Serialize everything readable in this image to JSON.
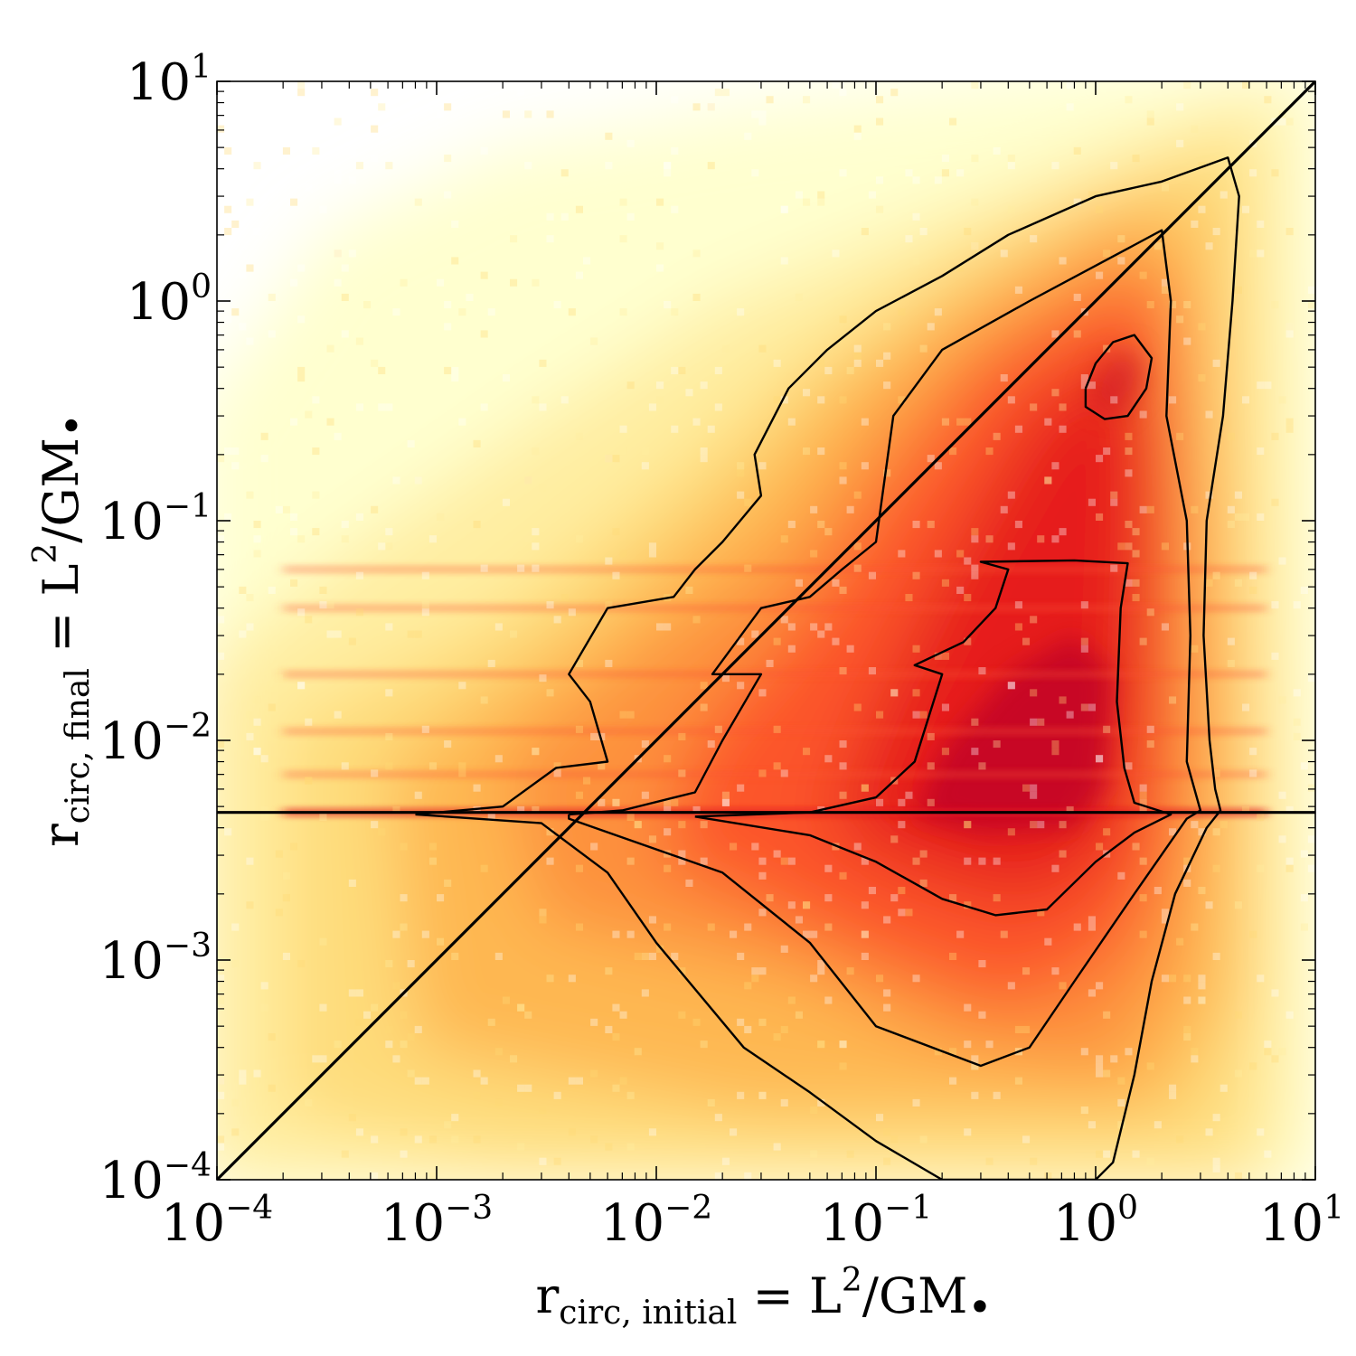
{
  "chart_data": {
    "type": "heatmap",
    "scale": {
      "x": "log",
      "y": "log"
    },
    "xlim": [
      0.0001,
      10
    ],
    "ylim": [
      0.0001,
      10
    ],
    "x_ticks": [
      {
        "base": "10",
        "exp": "−4"
      },
      {
        "base": "10",
        "exp": "−3"
      },
      {
        "base": "10",
        "exp": "−2"
      },
      {
        "base": "10",
        "exp": "−1"
      },
      {
        "base": "10",
        "exp": "0"
      },
      {
        "base": "10",
        "exp": "1"
      }
    ],
    "y_ticks": [
      {
        "base": "10",
        "exp": "−4"
      },
      {
        "base": "10",
        "exp": "−3"
      },
      {
        "base": "10",
        "exp": "−2"
      },
      {
        "base": "10",
        "exp": "−1"
      },
      {
        "base": "10",
        "exp": "0"
      },
      {
        "base": "10",
        "exp": "1"
      }
    ],
    "xlabel": {
      "main": "r",
      "sub": "circ, initial",
      "rest": " = L",
      "sup": "2",
      "tail": "/GM",
      "mark": "•"
    },
    "ylabel": {
      "main": "r",
      "sub": "circ, final",
      "rest": " = L",
      "sup": "2",
      "tail": "/GM",
      "mark": "•"
    },
    "reference_lines": [
      {
        "kind": "identity",
        "from": [
          0.0001,
          0.0001
        ],
        "to": [
          10,
          10
        ]
      },
      {
        "kind": "horizontal",
        "y": 0.0047
      }
    ],
    "colormap": [
      "#ffffcc",
      "#ffeda0",
      "#fed976",
      "#feb24c",
      "#fd8d3c",
      "#fc4e2a",
      "#e31a1c",
      "#bd0026"
    ],
    "density_ridges": {
      "horizontal_bands_y": [
        0.0047,
        0.007,
        0.011,
        0.02,
        0.04,
        0.06
      ],
      "peak_x": 0.3,
      "peak_y": 0.005
    },
    "contours": [
      {
        "level": "outer",
        "points": [
          [
            0.0008,
            0.0046
          ],
          [
            0.002,
            0.005
          ],
          [
            0.0035,
            0.0075
          ],
          [
            0.006,
            0.008
          ],
          [
            0.005,
            0.015
          ],
          [
            0.004,
            0.02
          ],
          [
            0.006,
            0.04
          ],
          [
            0.012,
            0.045
          ],
          [
            0.015,
            0.06
          ],
          [
            0.02,
            0.08
          ],
          [
            0.03,
            0.13
          ],
          [
            0.028,
            0.2
          ],
          [
            0.04,
            0.4
          ],
          [
            0.06,
            0.6
          ],
          [
            0.1,
            0.9
          ],
          [
            0.2,
            1.3
          ],
          [
            0.4,
            2.0
          ],
          [
            1.0,
            3.0
          ],
          [
            2.0,
            3.5
          ],
          [
            4.0,
            4.5
          ],
          [
            4.5,
            3.0
          ],
          [
            4.2,
            1.0
          ],
          [
            3.8,
            0.3
          ],
          [
            3.2,
            0.1
          ],
          [
            3.1,
            0.03
          ],
          [
            3.3,
            0.01
          ],
          [
            3.5,
            0.006
          ],
          [
            3.7,
            0.0048
          ],
          [
            3.2,
            0.004
          ],
          [
            2.3,
            0.002
          ],
          [
            1.8,
            0.0008
          ],
          [
            1.5,
            0.0003
          ],
          [
            1.2,
            0.00012
          ],
          [
            1.0,
            0.0001
          ],
          [
            0.2,
            0.0001
          ],
          [
            0.1,
            0.00015
          ],
          [
            0.05,
            0.00025
          ],
          [
            0.025,
            0.0004
          ],
          [
            0.01,
            0.0012
          ],
          [
            0.006,
            0.0025
          ],
          [
            0.003,
            0.0042
          ],
          [
            0.0008,
            0.0046
          ]
        ]
      },
      {
        "level": "middle",
        "points": [
          [
            0.004,
            0.0046
          ],
          [
            0.007,
            0.0048
          ],
          [
            0.015,
            0.0058
          ],
          [
            0.02,
            0.01
          ],
          [
            0.03,
            0.02
          ],
          [
            0.018,
            0.02
          ],
          [
            0.03,
            0.04
          ],
          [
            0.05,
            0.045
          ],
          [
            0.07,
            0.06
          ],
          [
            0.1,
            0.08
          ],
          [
            0.12,
            0.3
          ],
          [
            0.2,
            0.6
          ],
          [
            0.5,
            1.0
          ],
          [
            1.5,
            1.8
          ],
          [
            2.0,
            2.1
          ],
          [
            2.2,
            1.0
          ],
          [
            2.1,
            0.3
          ],
          [
            2.6,
            0.1
          ],
          [
            2.7,
            0.03
          ],
          [
            2.6,
            0.008
          ],
          [
            3.0,
            0.0048
          ],
          [
            2.6,
            0.0044
          ],
          [
            1.5,
            0.002
          ],
          [
            0.8,
            0.0008
          ],
          [
            0.5,
            0.0004
          ],
          [
            0.3,
            0.00033
          ],
          [
            0.1,
            0.0005
          ],
          [
            0.05,
            0.0012
          ],
          [
            0.02,
            0.0025
          ],
          [
            0.004,
            0.0044
          ],
          [
            0.004,
            0.0046
          ]
        ]
      },
      {
        "level": "inner",
        "points": [
          [
            0.015,
            0.0045
          ],
          [
            0.05,
            0.0047
          ],
          [
            0.1,
            0.0055
          ],
          [
            0.15,
            0.008
          ],
          [
            0.2,
            0.02
          ],
          [
            0.15,
            0.022
          ],
          [
            0.25,
            0.028
          ],
          [
            0.35,
            0.04
          ],
          [
            0.4,
            0.06
          ],
          [
            0.3,
            0.065
          ],
          [
            0.8,
            0.066
          ],
          [
            1.4,
            0.064
          ],
          [
            1.3,
            0.04
          ],
          [
            1.25,
            0.015
          ],
          [
            1.35,
            0.0075
          ],
          [
            1.5,
            0.0052
          ],
          [
            2.2,
            0.0046
          ],
          [
            1.5,
            0.0038
          ],
          [
            1.0,
            0.0028
          ],
          [
            0.6,
            0.0017
          ],
          [
            0.35,
            0.0016
          ],
          [
            0.2,
            0.0019
          ],
          [
            0.1,
            0.0028
          ],
          [
            0.05,
            0.0037
          ],
          [
            0.015,
            0.0045
          ]
        ]
      },
      {
        "level": "peak",
        "points": [
          [
            0.9,
            0.4
          ],
          [
            1.0,
            0.52
          ],
          [
            1.2,
            0.65
          ],
          [
            1.5,
            0.7
          ],
          [
            1.8,
            0.55
          ],
          [
            1.7,
            0.4
          ],
          [
            1.4,
            0.3
          ],
          [
            1.1,
            0.29
          ],
          [
            0.9,
            0.33
          ],
          [
            0.9,
            0.4
          ]
        ]
      }
    ]
  }
}
